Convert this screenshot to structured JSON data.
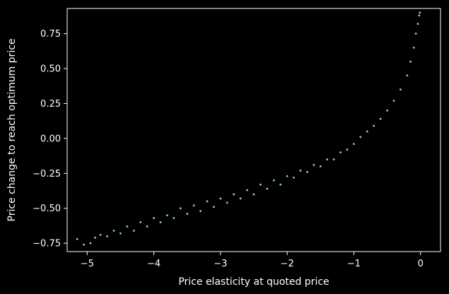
{
  "chart_data": {
    "type": "scatter",
    "xlabel": "Price elasticity at quoted price",
    "ylabel": "Price change to reach optimum price",
    "xlim": [
      -5.3,
      0.3
    ],
    "ylim": [
      -0.81,
      0.93
    ],
    "xticks": [
      -5,
      -4,
      -3,
      -2,
      -1,
      0
    ],
    "xtick_labels": [
      "−5",
      "−4",
      "−3",
      "−2",
      "−1",
      "0"
    ],
    "yticks": [
      -0.75,
      -0.5,
      -0.25,
      0.0,
      0.25,
      0.5,
      0.75
    ],
    "ytick_labels": [
      "−0.75",
      "−0.50",
      "−0.25",
      "0.00",
      "0.25",
      "0.50",
      "0.75"
    ],
    "grid": false,
    "colors": {
      "background": "#000000",
      "axes": "#ffffff",
      "points": "#8dd3c7"
    },
    "series": [
      {
        "points": [
          [
            -5.15,
            -0.72
          ],
          [
            -5.05,
            -0.76
          ],
          [
            -4.95,
            -0.75
          ],
          [
            -4.88,
            -0.71
          ],
          [
            -4.8,
            -0.69
          ],
          [
            -4.7,
            -0.7
          ],
          [
            -4.6,
            -0.66
          ],
          [
            -4.5,
            -0.68
          ],
          [
            -4.4,
            -0.63
          ],
          [
            -4.3,
            -0.66
          ],
          [
            -4.2,
            -0.6
          ],
          [
            -4.1,
            -0.63
          ],
          [
            -4.0,
            -0.57
          ],
          [
            -3.9,
            -0.6
          ],
          [
            -3.8,
            -0.55
          ],
          [
            -3.7,
            -0.57
          ],
          [
            -3.6,
            -0.5
          ],
          [
            -3.5,
            -0.54
          ],
          [
            -3.4,
            -0.48
          ],
          [
            -3.3,
            -0.52
          ],
          [
            -3.2,
            -0.45
          ],
          [
            -3.1,
            -0.49
          ],
          [
            -3.0,
            -0.43
          ],
          [
            -2.9,
            -0.46
          ],
          [
            -2.8,
            -0.4
          ],
          [
            -2.7,
            -0.43
          ],
          [
            -2.6,
            -0.37
          ],
          [
            -2.5,
            -0.4
          ],
          [
            -2.4,
            -0.33
          ],
          [
            -2.3,
            -0.36
          ],
          [
            -2.2,
            -0.3
          ],
          [
            -2.1,
            -0.33
          ],
          [
            -2.0,
            -0.27
          ],
          [
            -1.9,
            -0.28
          ],
          [
            -1.8,
            -0.23
          ],
          [
            -1.7,
            -0.24
          ],
          [
            -1.6,
            -0.19
          ],
          [
            -1.5,
            -0.2
          ],
          [
            -1.4,
            -0.15
          ],
          [
            -1.3,
            -0.15
          ],
          [
            -1.2,
            -0.1
          ],
          [
            -1.1,
            -0.08
          ],
          [
            -1.0,
            -0.04
          ],
          [
            -0.9,
            0.01
          ],
          [
            -0.8,
            0.05
          ],
          [
            -0.7,
            0.09
          ],
          [
            -0.6,
            0.14
          ],
          [
            -0.5,
            0.2
          ],
          [
            -0.4,
            0.27
          ],
          [
            -0.3,
            0.35
          ],
          [
            -0.2,
            0.45
          ],
          [
            -0.15,
            0.55
          ],
          [
            -0.1,
            0.65
          ],
          [
            -0.07,
            0.75
          ],
          [
            -0.04,
            0.82
          ],
          [
            -0.02,
            0.88
          ],
          [
            -0.01,
            0.9
          ]
        ]
      }
    ]
  }
}
